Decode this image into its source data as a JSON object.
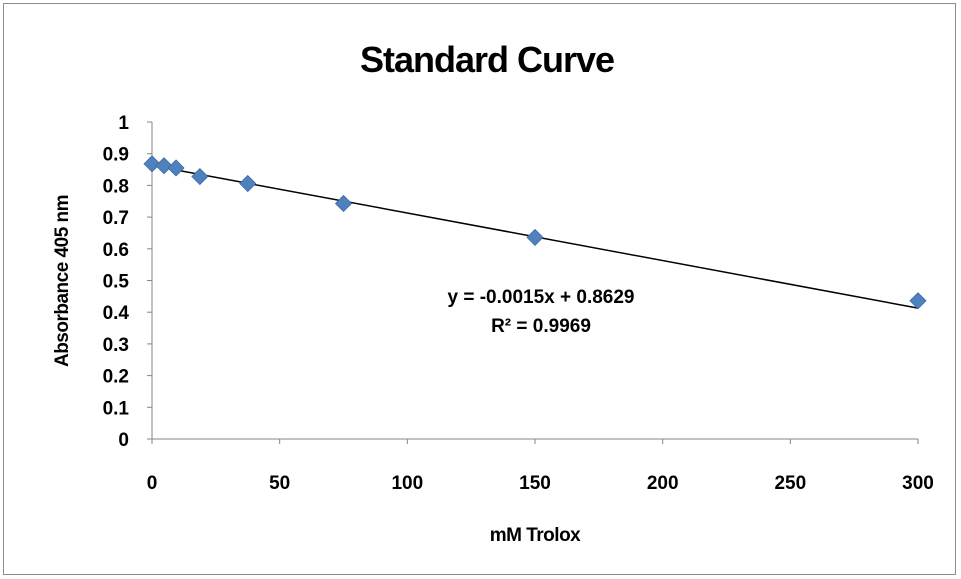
{
  "chart_data": {
    "type": "scatter",
    "title": "Standard Curve",
    "xlabel": "mM Trolox",
    "ylabel": "Absorbance  405 nm",
    "xlim": [
      0,
      300
    ],
    "ylim": [
      0,
      1
    ],
    "xticks": [
      0,
      50,
      100,
      150,
      200,
      250,
      300
    ],
    "yticks": [
      0,
      0.1,
      0.2,
      0.3,
      0.4,
      0.5,
      0.6,
      0.7,
      0.8,
      0.9,
      1
    ],
    "xtick_labels": [
      "0",
      "50",
      "100",
      "150",
      "200",
      "250",
      "300"
    ],
    "ytick_labels": [
      "0",
      "0.1",
      "0.2",
      "0.3",
      "0.4",
      "0.5",
      "0.6",
      "0.7",
      "0.8",
      "0.9",
      "1"
    ],
    "grid": false,
    "legend": "none",
    "marker_color": "#4f81bd",
    "line_color": "#000000",
    "series": [
      {
        "x": [
          0,
          4.7,
          9.4,
          18.75,
          37.5,
          75,
          150,
          300
        ],
        "y": [
          0.868,
          0.862,
          0.855,
          0.828,
          0.806,
          0.743,
          0.636,
          0.436
        ]
      }
    ],
    "trendline": {
      "slope": -0.0015,
      "intercept": 0.8629,
      "equation": "y = -0.0015x + 0.8629",
      "r_squared": "R² = 0.9969"
    }
  }
}
